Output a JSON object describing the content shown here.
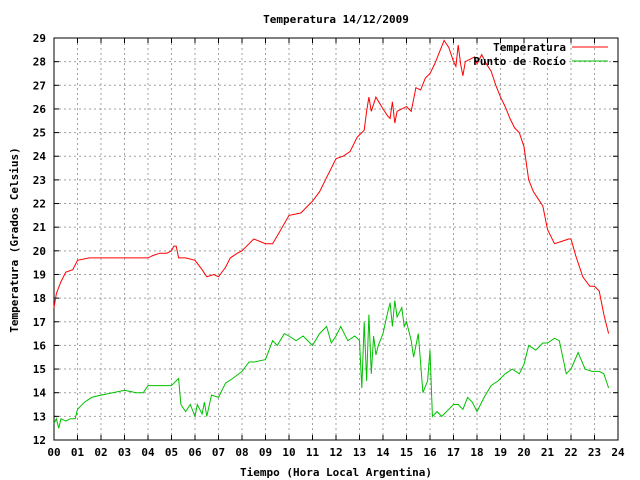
{
  "chart_data": {
    "type": "line",
    "title": "Temperatura 14/12/2009",
    "xlabel": "Tiempo (Hora Local Argentina)",
    "ylabel": "Temperatura (Grados Celsius)",
    "xlim": [
      0,
      24
    ],
    "ylim": [
      12,
      29
    ],
    "grid": true,
    "legend_position": "top-right",
    "x_ticks": [
      "00",
      "01",
      "02",
      "03",
      "04",
      "05",
      "06",
      "07",
      "08",
      "09",
      "10",
      "11",
      "12",
      "13",
      "14",
      "15",
      "16",
      "17",
      "18",
      "19",
      "20",
      "21",
      "22",
      "23",
      "24"
    ],
    "y_ticks": [
      12,
      13,
      14,
      15,
      16,
      17,
      18,
      19,
      20,
      21,
      22,
      23,
      24,
      25,
      26,
      27,
      28,
      29
    ],
    "series": [
      {
        "name": "Temperatura",
        "color": "#ff0000",
        "x": [
          0,
          0.1,
          0.3,
          0.5,
          0.8,
          1.0,
          1.5,
          2.0,
          2.5,
          3.0,
          3.3,
          3.6,
          4.0,
          4.2,
          4.5,
          4.8,
          5.0,
          5.1,
          5.2,
          5.3,
          5.6,
          6.0,
          6.3,
          6.5,
          6.8,
          7.0,
          7.3,
          7.5,
          7.8,
          8.0,
          8.3,
          8.5,
          9.0,
          9.3,
          9.6,
          10.0,
          10.5,
          10.8,
          11.0,
          11.3,
          11.5,
          11.8,
          12.0,
          12.3,
          12.6,
          12.9,
          13.1,
          13.2,
          13.3,
          13.4,
          13.5,
          13.7,
          14.0,
          14.2,
          14.3,
          14.4,
          14.5,
          14.6,
          14.8,
          15.0,
          15.2,
          15.4,
          15.6,
          15.8,
          16.0,
          16.2,
          16.4,
          16.6,
          16.8,
          17.0,
          17.1,
          17.2,
          17.3,
          17.4,
          17.5,
          17.7,
          17.9,
          18.0,
          18.2,
          18.4,
          18.6,
          18.8,
          19.0,
          19.2,
          19.4,
          19.6,
          19.8,
          20.0,
          20.2,
          20.4,
          20.6,
          20.8,
          21.0,
          21.3,
          21.6,
          21.9,
          22.0,
          22.2,
          22.5,
          22.8,
          23.0,
          23.2,
          23.4,
          23.6
        ],
        "values": [
          17.6,
          18.2,
          18.7,
          19.1,
          19.2,
          19.6,
          19.7,
          19.7,
          19.7,
          19.7,
          19.7,
          19.7,
          19.7,
          19.8,
          19.9,
          19.9,
          20.0,
          20.2,
          20.2,
          19.7,
          19.7,
          19.6,
          19.2,
          18.9,
          19.0,
          18.9,
          19.3,
          19.7,
          19.9,
          20.0,
          20.3,
          20.5,
          20.3,
          20.3,
          20.8,
          21.5,
          21.6,
          21.9,
          22.1,
          22.5,
          22.9,
          23.5,
          23.9,
          24.0,
          24.2,
          24.8,
          25.0,
          25.1,
          25.9,
          26.5,
          25.9,
          26.5,
          26.0,
          25.7,
          25.6,
          26.3,
          25.4,
          25.9,
          26.0,
          26.1,
          25.9,
          26.9,
          26.8,
          27.3,
          27.5,
          27.9,
          28.4,
          28.9,
          28.6,
          28.0,
          27.8,
          28.7,
          27.9,
          27.4,
          28.0,
          28.1,
          28.2,
          27.9,
          28.3,
          27.9,
          27.6,
          27.0,
          26.5,
          26.1,
          25.6,
          25.2,
          25.0,
          24.4,
          23.0,
          22.5,
          22.2,
          21.9,
          20.9,
          20.3,
          20.4,
          20.5,
          20.5,
          19.8,
          18.9,
          18.5,
          18.5,
          18.3,
          17.3,
          16.5
        ]
      },
      {
        "name": "Punto de Rocío",
        "color": "#00c000",
        "x": [
          0,
          0.1,
          0.2,
          0.3,
          0.5,
          0.7,
          0.9,
          1.0,
          1.3,
          1.6,
          2.0,
          2.5,
          3.0,
          3.5,
          3.8,
          4.0,
          4.5,
          5.0,
          5.3,
          5.4,
          5.6,
          5.8,
          6.0,
          6.1,
          6.3,
          6.4,
          6.5,
          6.7,
          7.0,
          7.3,
          7.6,
          8.0,
          8.3,
          8.5,
          9.0,
          9.3,
          9.5,
          9.8,
          10.0,
          10.3,
          10.6,
          11.0,
          11.3,
          11.6,
          11.8,
          12.0,
          12.2,
          12.5,
          12.8,
          13.0,
          13.1,
          13.2,
          13.3,
          13.4,
          13.5,
          13.6,
          13.7,
          13.8,
          14.0,
          14.2,
          14.3,
          14.4,
          14.5,
          14.6,
          14.8,
          14.9,
          15.0,
          15.2,
          15.3,
          15.5,
          15.7,
          15.9,
          16.0,
          16.1,
          16.3,
          16.5,
          16.8,
          17.0,
          17.2,
          17.4,
          17.6,
          17.8,
          18.0,
          18.3,
          18.6,
          18.9,
          19.2,
          19.5,
          19.8,
          20.0,
          20.2,
          20.5,
          20.8,
          21.0,
          21.3,
          21.5,
          21.8,
          22.0,
          22.3,
          22.6,
          22.9,
          23.2,
          23.4,
          23.6
        ],
        "values": [
          12.7,
          12.9,
          12.5,
          12.9,
          12.8,
          12.9,
          12.9,
          13.3,
          13.6,
          13.8,
          13.9,
          14.0,
          14.1,
          14.0,
          14.0,
          14.3,
          14.3,
          14.3,
          14.6,
          13.5,
          13.2,
          13.5,
          13.0,
          13.5,
          13.1,
          13.6,
          13.0,
          13.9,
          13.8,
          14.4,
          14.6,
          14.9,
          15.3,
          15.3,
          15.4,
          16.2,
          16.0,
          16.5,
          16.4,
          16.2,
          16.4,
          16.0,
          16.5,
          16.8,
          16.1,
          16.4,
          16.8,
          16.2,
          16.4,
          16.2,
          14.2,
          17.0,
          14.5,
          17.3,
          14.8,
          16.4,
          15.6,
          16.0,
          16.5,
          17.4,
          17.8,
          16.8,
          17.9,
          17.2,
          17.6,
          16.8,
          17.0,
          16.2,
          15.5,
          16.5,
          14.0,
          14.5,
          15.8,
          13.0,
          13.2,
          13.0,
          13.3,
          13.5,
          13.5,
          13.3,
          13.8,
          13.6,
          13.2,
          13.8,
          14.3,
          14.5,
          14.8,
          15.0,
          14.8,
          15.2,
          16.0,
          15.8,
          16.1,
          16.1,
          16.3,
          16.2,
          14.8,
          15.0,
          15.7,
          15.0,
          14.9,
          14.9,
          14.8,
          14.2
        ]
      }
    ]
  }
}
